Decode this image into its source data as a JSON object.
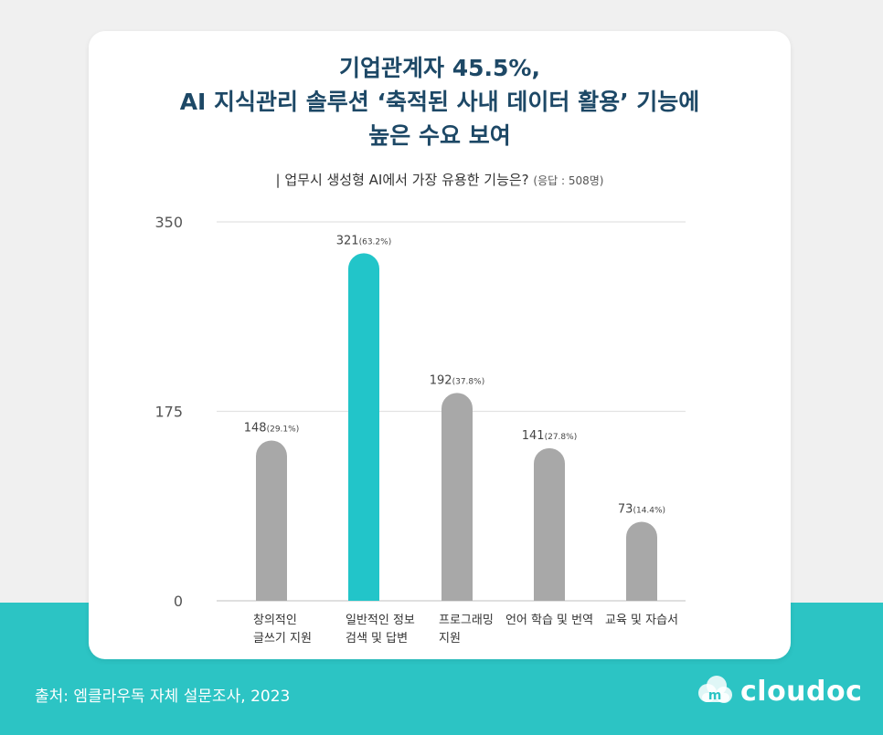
{
  "title_lines": [
    "기업관계자 45.5%,",
    "AI 지식관리 솔루션 ‘축적된 사내 데이터 활용’ 기능에",
    "높은 수요 보여"
  ],
  "subtitle": {
    "question": "| 업무시 생성형 AI에서 가장 유용한 기능은?",
    "responses": "(응답 : 508명)"
  },
  "source": "출처: 엠클라우독 자체 설문조사, 2023",
  "logo": {
    "text": "cloudoc",
    "icon": "cloud-logo-icon"
  },
  "colors": {
    "highlight": "#22c5c9",
    "bar": "#a8a8a8",
    "title": "#1d4866",
    "band": "#2cc4c4"
  },
  "chart_data": {
    "type": "bar",
    "categories": [
      [
        "창의적인",
        "글쓰기 지원"
      ],
      [
        "일반적인 정보",
        "검색 및 답변"
      ],
      [
        "프로그래밍",
        "지원"
      ],
      [
        "언어 학습 및 번역"
      ],
      [
        "교육 및 자습서"
      ]
    ],
    "values": [
      148,
      321,
      192,
      141,
      73
    ],
    "percent_labels": [
      "(29.1%)",
      "(63.2%)",
      "(37.8%)",
      "(27.8%)",
      "(14.4%)"
    ],
    "highlight_index": 1,
    "ylim": [
      0,
      350
    ],
    "yticks": [
      0,
      175,
      350
    ],
    "grid": true,
    "xlabel": "",
    "ylabel": ""
  }
}
